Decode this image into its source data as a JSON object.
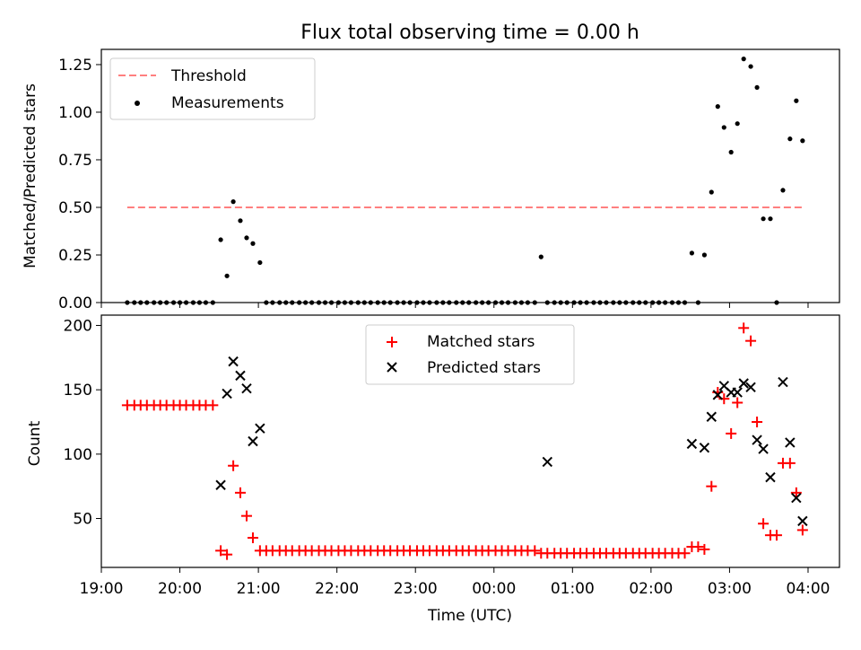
{
  "title": "Flux total observing time = 0.00 h",
  "chart_data": [
    {
      "type": "scatter",
      "ylabel": "Matched/Predicted stars",
      "ylim": [
        0,
        1.33
      ],
      "yticks": [
        "0.00",
        "0.25",
        "0.50",
        "0.75",
        "1.00",
        "1.25"
      ],
      "ytick_values": [
        0,
        0.25,
        0.5,
        0.75,
        1.0,
        1.25
      ],
      "legend_position": "top-left",
      "threshold": {
        "name": "Threshold",
        "value": 0.5,
        "x_start": 19.33,
        "x_end": 27.93,
        "color": "#ff7f7f"
      },
      "series": [
        {
          "name": "Measurements",
          "color": "#000000",
          "x": [
            19.33,
            19.42,
            19.5,
            19.58,
            19.67,
            19.75,
            19.83,
            19.92,
            20.0,
            20.08,
            20.17,
            20.25,
            20.33,
            20.42,
            20.52,
            20.6,
            20.68,
            20.77,
            20.85,
            20.93,
            21.02,
            21.1,
            21.18,
            21.27,
            21.35,
            21.43,
            21.52,
            21.6,
            21.68,
            21.77,
            21.85,
            21.93,
            22.02,
            22.1,
            22.18,
            22.27,
            22.35,
            22.43,
            22.52,
            22.6,
            22.68,
            22.77,
            22.85,
            22.93,
            23.02,
            23.1,
            23.18,
            23.27,
            23.35,
            23.43,
            23.52,
            23.6,
            23.68,
            23.77,
            23.85,
            23.93,
            24.02,
            24.1,
            24.18,
            24.27,
            24.35,
            24.43,
            24.52,
            24.6,
            24.68,
            24.77,
            24.85,
            24.93,
            25.02,
            25.1,
            25.18,
            25.27,
            25.35,
            25.43,
            25.52,
            25.6,
            25.68,
            25.77,
            25.85,
            25.93,
            26.02,
            26.1,
            26.18,
            26.27,
            26.35,
            26.43,
            26.52,
            26.6,
            26.68,
            26.77,
            26.85,
            26.93,
            27.02,
            27.1,
            27.18,
            27.27,
            27.35,
            27.43,
            27.52,
            27.6,
            27.68,
            27.77,
            27.85,
            27.93
          ],
          "y": [
            0,
            0,
            0,
            0,
            0,
            0,
            0,
            0,
            0,
            0,
            0,
            0,
            0,
            0,
            0.33,
            0.14,
            0.53,
            0.43,
            0.34,
            0.31,
            0.21,
            0,
            0,
            0,
            0,
            0,
            0,
            0,
            0,
            0,
            0,
            0,
            0,
            0,
            0,
            0,
            0,
            0,
            0,
            0,
            0,
            0,
            0,
            0,
            0,
            0,
            0,
            0,
            0,
            0,
            0,
            0,
            0,
            0,
            0,
            0,
            0,
            0,
            0,
            0,
            0,
            0,
            0,
            0.24,
            0,
            0,
            0,
            0,
            0,
            0,
            0,
            0,
            0,
            0,
            0,
            0,
            0,
            0,
            0,
            0,
            0,
            0,
            0,
            0,
            0,
            0,
            0.26,
            0,
            0.25,
            0.58,
            1.03,
            0.92,
            0.79,
            0.94,
            1.28,
            1.24,
            1.13,
            0.44,
            0.44,
            0,
            0.59,
            0.86,
            1.06,
            0.85
          ]
        }
      ]
    },
    {
      "type": "scatter",
      "xlabel": "Time (UTC)",
      "ylabel": "Count",
      "ylim": [
        12,
        208
      ],
      "yticks": [
        "50",
        "100",
        "150",
        "200"
      ],
      "ytick_values": [
        50,
        100,
        150,
        200
      ],
      "xlim": [
        19.0,
        28.4
      ],
      "xticks": [
        "19:00",
        "20:00",
        "21:00",
        "22:00",
        "23:00",
        "00:00",
        "01:00",
        "02:00",
        "03:00",
        "04:00"
      ],
      "xtick_values": [
        19,
        20,
        21,
        22,
        23,
        24,
        25,
        26,
        27,
        28
      ],
      "legend_position": "upper center",
      "series": [
        {
          "name": "Matched stars",
          "marker": "+",
          "color": "#ff0000",
          "x": [
            19.33,
            19.42,
            19.5,
            19.58,
            19.67,
            19.75,
            19.83,
            19.92,
            20.0,
            20.08,
            20.17,
            20.25,
            20.33,
            20.42,
            20.52,
            20.6,
            20.68,
            20.77,
            20.85,
            20.93,
            21.02,
            21.1,
            21.18,
            21.27,
            21.35,
            21.43,
            21.52,
            21.6,
            21.68,
            21.77,
            21.85,
            21.93,
            22.02,
            22.1,
            22.18,
            22.27,
            22.35,
            22.43,
            22.52,
            22.6,
            22.68,
            22.77,
            22.85,
            22.93,
            23.02,
            23.1,
            23.18,
            23.27,
            23.35,
            23.43,
            23.52,
            23.6,
            23.68,
            23.77,
            23.85,
            23.93,
            24.02,
            24.1,
            24.18,
            24.27,
            24.35,
            24.43,
            24.52,
            24.6,
            24.68,
            24.77,
            24.85,
            24.93,
            25.02,
            25.1,
            25.18,
            25.27,
            25.35,
            25.43,
            25.52,
            25.6,
            25.68,
            25.77,
            25.85,
            25.93,
            26.02,
            26.1,
            26.18,
            26.27,
            26.35,
            26.43,
            26.52,
            26.6,
            26.68,
            26.77,
            26.85,
            26.93,
            27.02,
            27.1,
            27.18,
            27.27,
            27.35,
            27.43,
            27.52,
            27.6,
            27.68,
            27.77,
            27.85,
            27.93
          ],
          "y": [
            138,
            138,
            138,
            138,
            138,
            138,
            138,
            138,
            138,
            138,
            138,
            138,
            138,
            138,
            25,
            22,
            91,
            70,
            52,
            35,
            25,
            25,
            25,
            25,
            25,
            25,
            25,
            25,
            25,
            25,
            25,
            25,
            25,
            25,
            25,
            25,
            25,
            25,
            25,
            25,
            25,
            25,
            25,
            25,
            25,
            25,
            25,
            25,
            25,
            25,
            25,
            25,
            25,
            25,
            25,
            25,
            25,
            25,
            25,
            25,
            25,
            25,
            25,
            23,
            23,
            23,
            23,
            23,
            23,
            23,
            23,
            23,
            23,
            23,
            23,
            23,
            23,
            23,
            23,
            23,
            23,
            23,
            23,
            23,
            23,
            23,
            28,
            28,
            26,
            75,
            148,
            143,
            116,
            140,
            198,
            188,
            125,
            46,
            37,
            37,
            93,
            93,
            70,
            41
          ]
        },
        {
          "name": "Predicted stars",
          "marker": "x",
          "color": "#000000",
          "x": [
            20.52,
            20.6,
            20.68,
            20.77,
            20.85,
            20.93,
            21.02,
            24.68,
            26.52,
            26.68,
            26.77,
            26.85,
            26.93,
            27.02,
            27.1,
            27.18,
            27.27,
            27.35,
            27.43,
            27.52,
            27.68,
            27.77,
            27.85,
            27.93
          ],
          "y": [
            76,
            147,
            172,
            161,
            151,
            110,
            120,
            94,
            108,
            105,
            129,
            146,
            153,
            148,
            148,
            155,
            152,
            111,
            104,
            82,
            156,
            109,
            66,
            48
          ]
        }
      ]
    }
  ]
}
